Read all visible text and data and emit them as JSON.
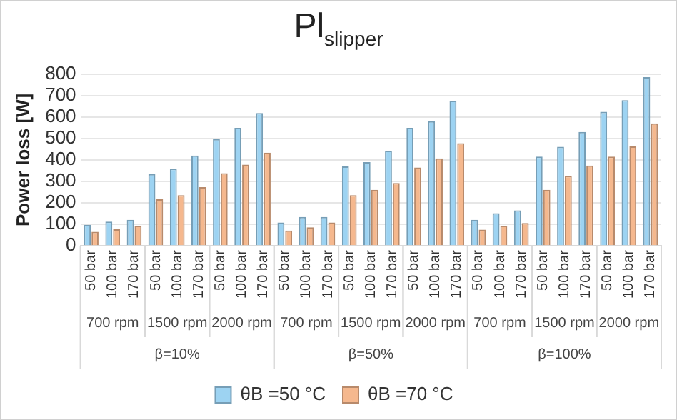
{
  "chart_data": {
    "type": "bar",
    "title": "Pl$_{slipper}$",
    "ylabel": "Power loss [W]",
    "categories": [
      "50 bar",
      "100 bar",
      "170 bar",
      "50 bar",
      "100 bar",
      "170 bar",
      "50 bar",
      "100 bar",
      "170 bar",
      "50 bar",
      "100 bar",
      "170 bar",
      "50 bar",
      "100 bar",
      "170 bar",
      "50 bar",
      "100 bar",
      "170 bar",
      "50 bar",
      "100 bar",
      "170 bar",
      "50 bar",
      "100 bar",
      "170 bar",
      "50 bar",
      "100 bar",
      "170 bar"
    ],
    "series": [
      {
        "name": "θB =50 °C",
        "color": "#9dd3f2",
        "values": [
          98,
          113,
          121,
          334,
          359,
          420,
          497,
          549,
          618,
          109,
          134,
          134,
          370,
          390,
          443,
          549,
          580,
          676,
          121,
          152,
          165,
          415,
          461,
          530,
          624,
          678,
          785
        ]
      },
      {
        "name": "θB =70 °C",
        "color": "#f5b88e",
        "values": [
          65,
          77,
          94,
          217,
          236,
          273,
          338,
          378,
          434,
          71,
          86,
          109,
          236,
          261,
          292,
          365,
          407,
          478,
          75,
          94,
          106,
          261,
          326,
          374,
          415,
          463,
          570
        ]
      }
    ],
    "annotations": [
      "700 rpm",
      "1500 rpm",
      "2000 rpm",
      "700 rpm",
      "1500 rpm",
      "2000 rpm",
      "700 rpm",
      "1500 rpm",
      "2000 rpm",
      "β=10%",
      "β=50%",
      "β=100%"
    ],
    "ylim": [
      0,
      800
    ],
    "yticks": [
      0,
      100,
      200,
      300,
      400,
      500,
      600,
      700,
      800
    ],
    "grid": "y",
    "legend": "bottom"
  }
}
